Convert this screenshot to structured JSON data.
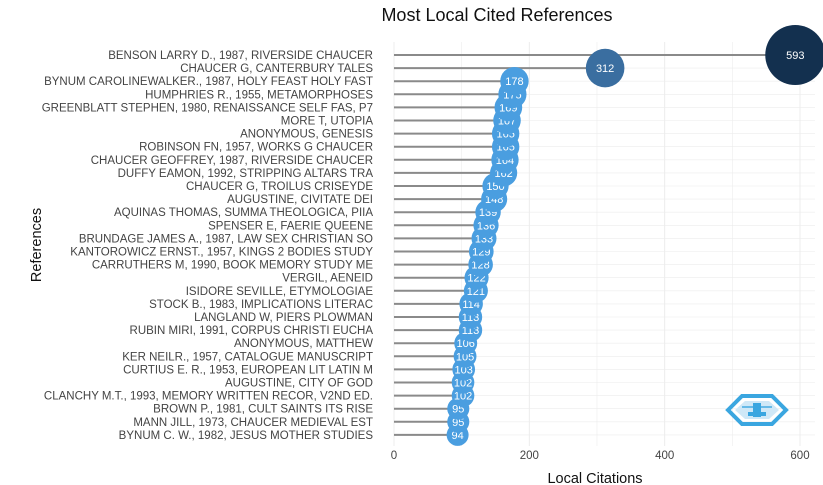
{
  "chart_data": {
    "type": "scatter",
    "title": "Most Local Cited References",
    "xlabel": "Local Citations",
    "ylabel": "References",
    "xlim": [
      0,
      620
    ],
    "xticks": [
      0,
      200,
      400,
      600
    ],
    "grid": true,
    "categories": [
      "BENSON LARRY D., 1987, RIVERSIDE CHAUCER",
      "CHAUCER G, CANTERBURY TALES",
      "BYNUM CAROLINEWALKER., 1987, HOLY FEAST HOLY FAST",
      "HUMPHRIES R., 1955, METAMORPHOSES",
      "GREENBLATT STEPHEN, 1980, RENAISSANCE SELF FAS, P7",
      "MORE T, UTOPIA",
      "ANONYMOUS, GENESIS",
      "ROBINSON FN, 1957, WORKS G CHAUCER",
      "CHAUCER GEOFFREY, 1987, RIVERSIDE CHAUCER",
      "DUFFY EAMON, 1992, STRIPPING ALTARS TRA",
      "CHAUCER G, TROILUS CRISEYDE",
      "AUGUSTINE, CIVITATE DEI",
      "AQUINAS THOMAS, SUMMA THEOLOGICA, PIIA",
      "SPENSER E, FAERIE QUEENE",
      "BRUNDAGE JAMES A., 1987, LAW SEX CHRISTIAN SO",
      "KANTOROWICZ ERNST., 1957, KINGS 2 BODIES STUDY",
      "CARRUTHERS M, 1990, BOOK MEMORY STUDY ME",
      "VERGIL, AENEID",
      "ISIDORE SEVILLE, ETYMOLOGIAE",
      "STOCK B., 1983, IMPLICATIONS LITERAC",
      "LANGLAND W, PIERS PLOWMAN",
      "RUBIN MIRI, 1991, CORPUS CHRISTI EUCHA",
      "ANONYMOUS, MATTHEW",
      "KER NEILR., 1957, CATALOGUE MANUSCRIPT",
      "CURTIUS E. R., 1953, EUROPEAN LIT LATIN M",
      "AUGUSTINE, CITY OF GOD",
      "CLANCHY M.T., 1993, MEMORY WRITTEN RECOR, V2ND ED.",
      "BROWN P., 1981, CULT SAINTS ITS RISE",
      "MANN JILL, 1973, CHAUCER MEDIEVAL EST",
      "BYNUM C. W., 1982, JESUS MOTHER STUDIES"
    ],
    "values": [
      593,
      312,
      178,
      175,
      169,
      167,
      165,
      165,
      164,
      162,
      150,
      148,
      139,
      136,
      133,
      129,
      128,
      122,
      121,
      114,
      113,
      113,
      106,
      105,
      103,
      102,
      102,
      95,
      95,
      94
    ],
    "colors": {
      "dark": "#13304f",
      "mid": "#3a6ea0",
      "light": "#4a9ee0",
      "stem": "#8a8a8a",
      "grid": "#ececec"
    },
    "logo_icon": "bibliometrix-logo-icon"
  }
}
